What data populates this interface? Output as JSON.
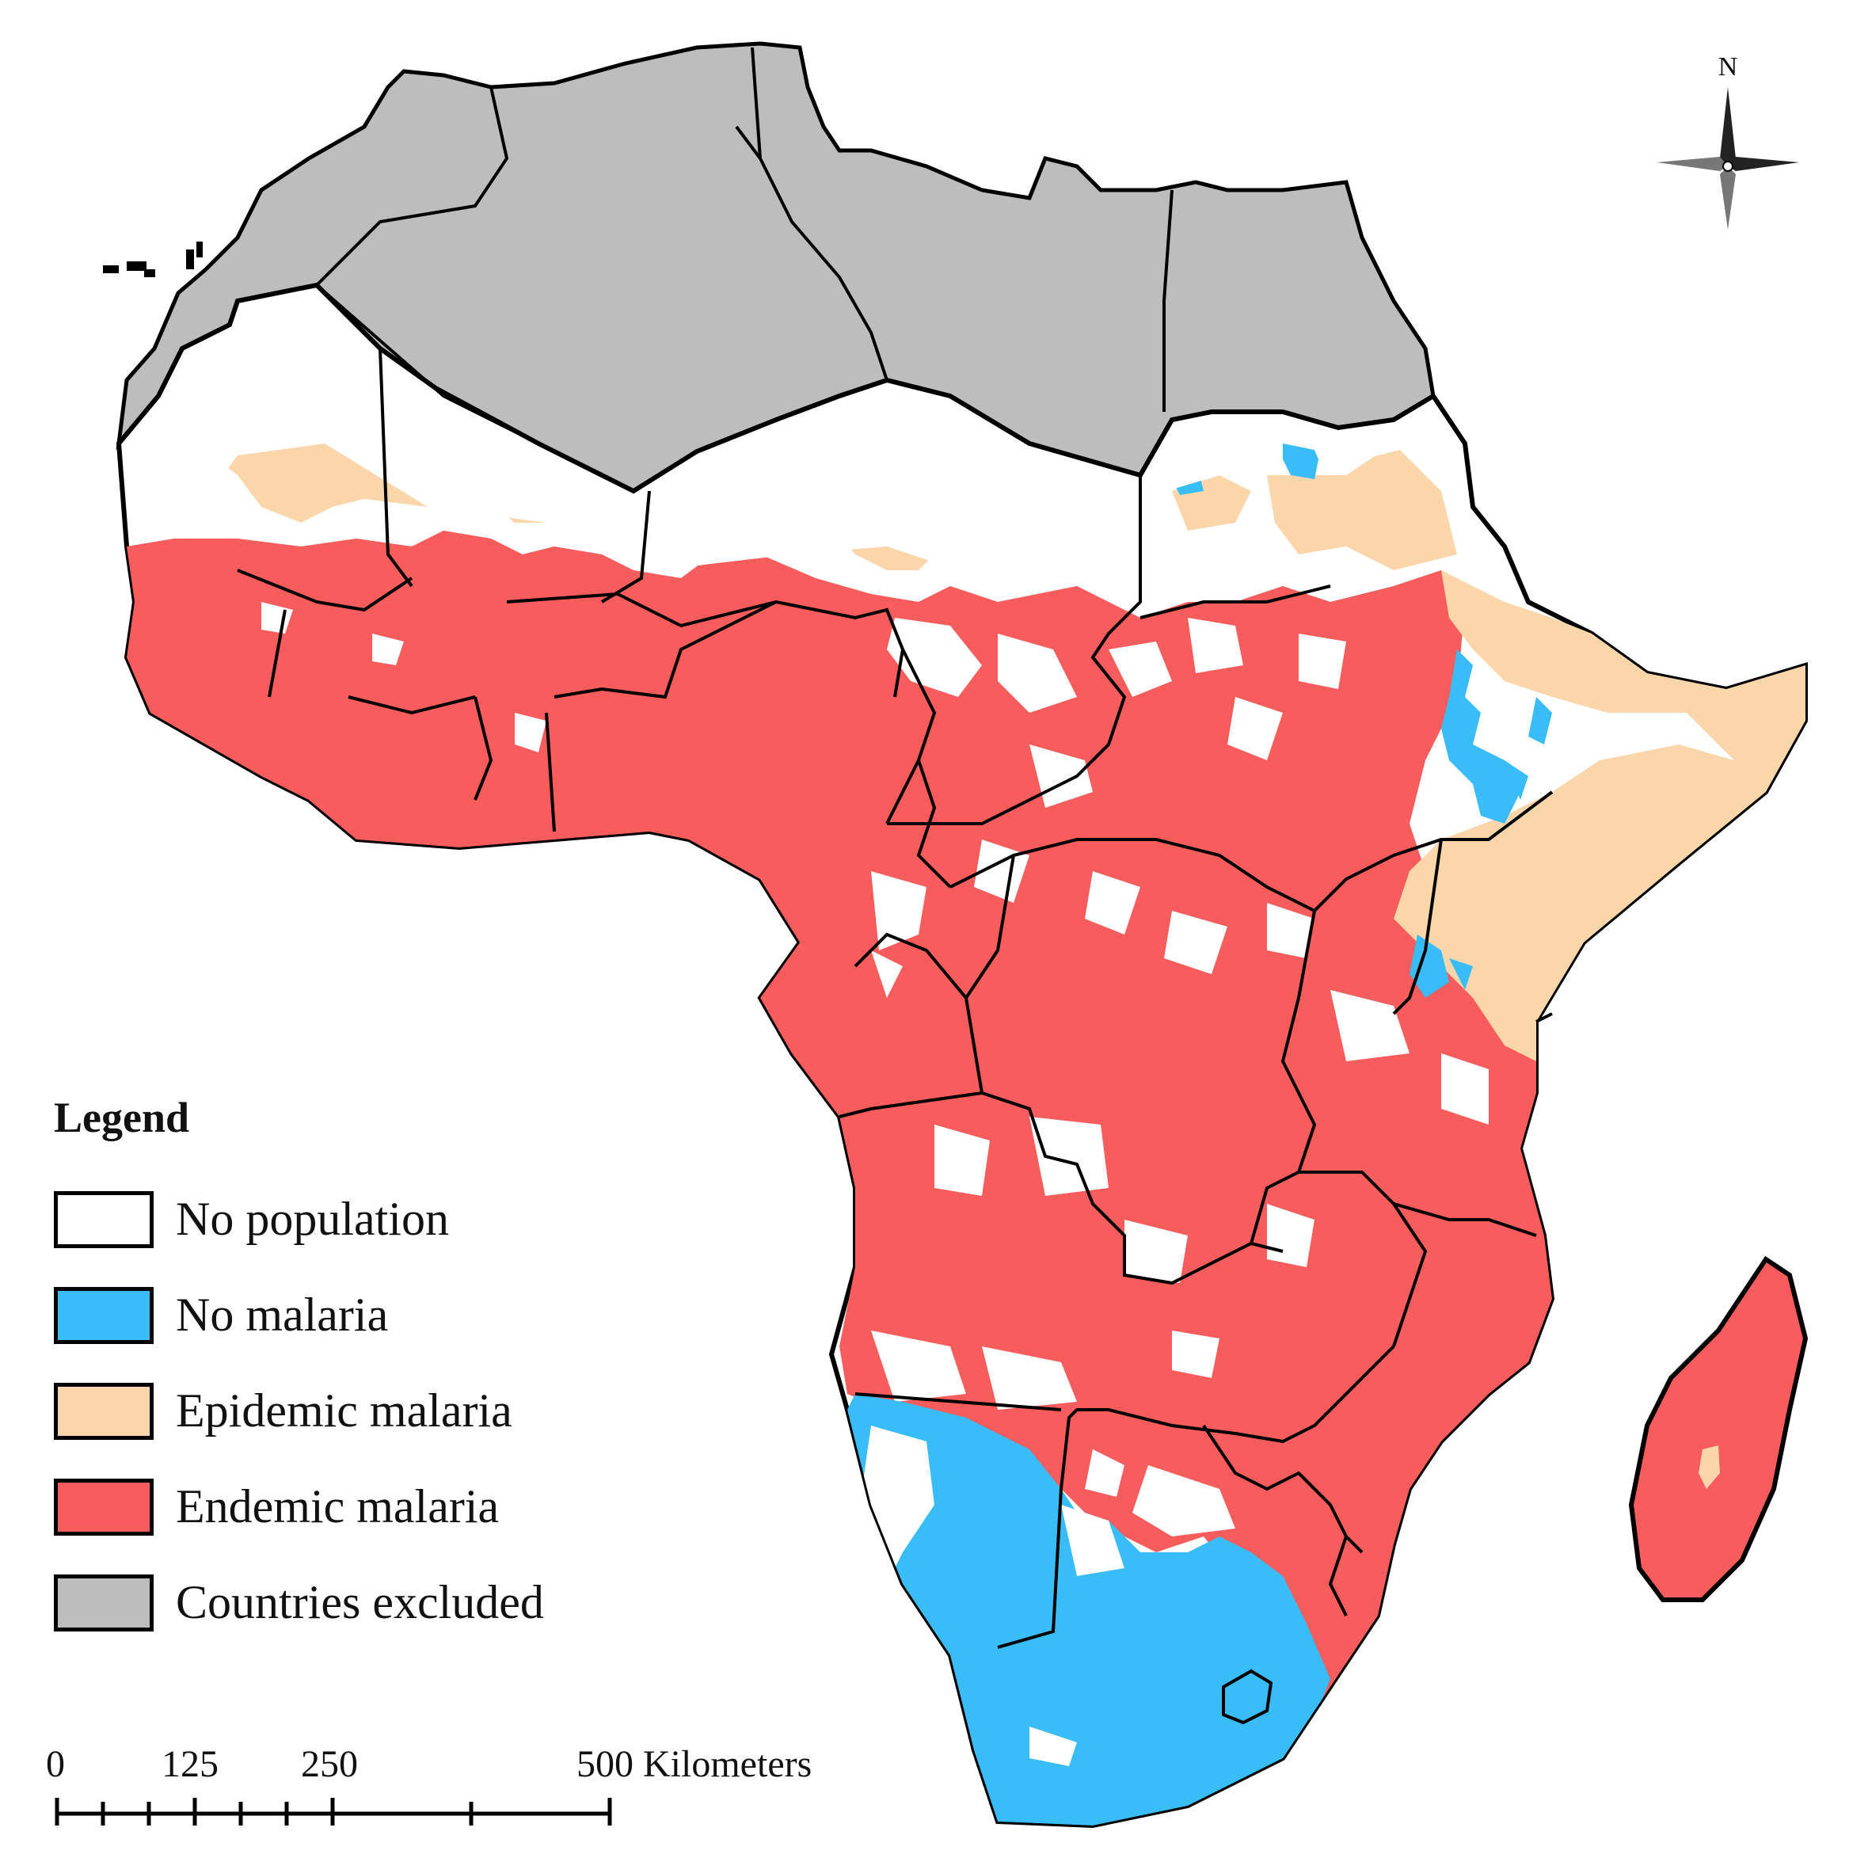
{
  "colors": {
    "no_population": "#ffffff",
    "no_malaria": "#38bdf8",
    "epidemic_malaria": "#fbd6ab",
    "endemic_malaria": "#f95c5c",
    "countries_excluded": "#bdbdbd",
    "border": "#000000"
  },
  "legend": {
    "title": "Legend",
    "items": [
      {
        "label": "No population",
        "color": "#ffffff"
      },
      {
        "label": "No malaria",
        "color": "#38bdf8"
      },
      {
        "label": "Epidemic malaria",
        "color": "#fbd6ab"
      },
      {
        "label": "Endemic malaria",
        "color": "#f95c5c"
      },
      {
        "label": "Countries excluded",
        "color": "#bdbdbd"
      }
    ]
  },
  "scale_bar": {
    "tick_0": "0",
    "tick_125": "125",
    "tick_250": "250",
    "tick_500": "500 Kilometers"
  },
  "north_arrow": {
    "label": "N",
    "icon": "compass-rose-icon"
  }
}
